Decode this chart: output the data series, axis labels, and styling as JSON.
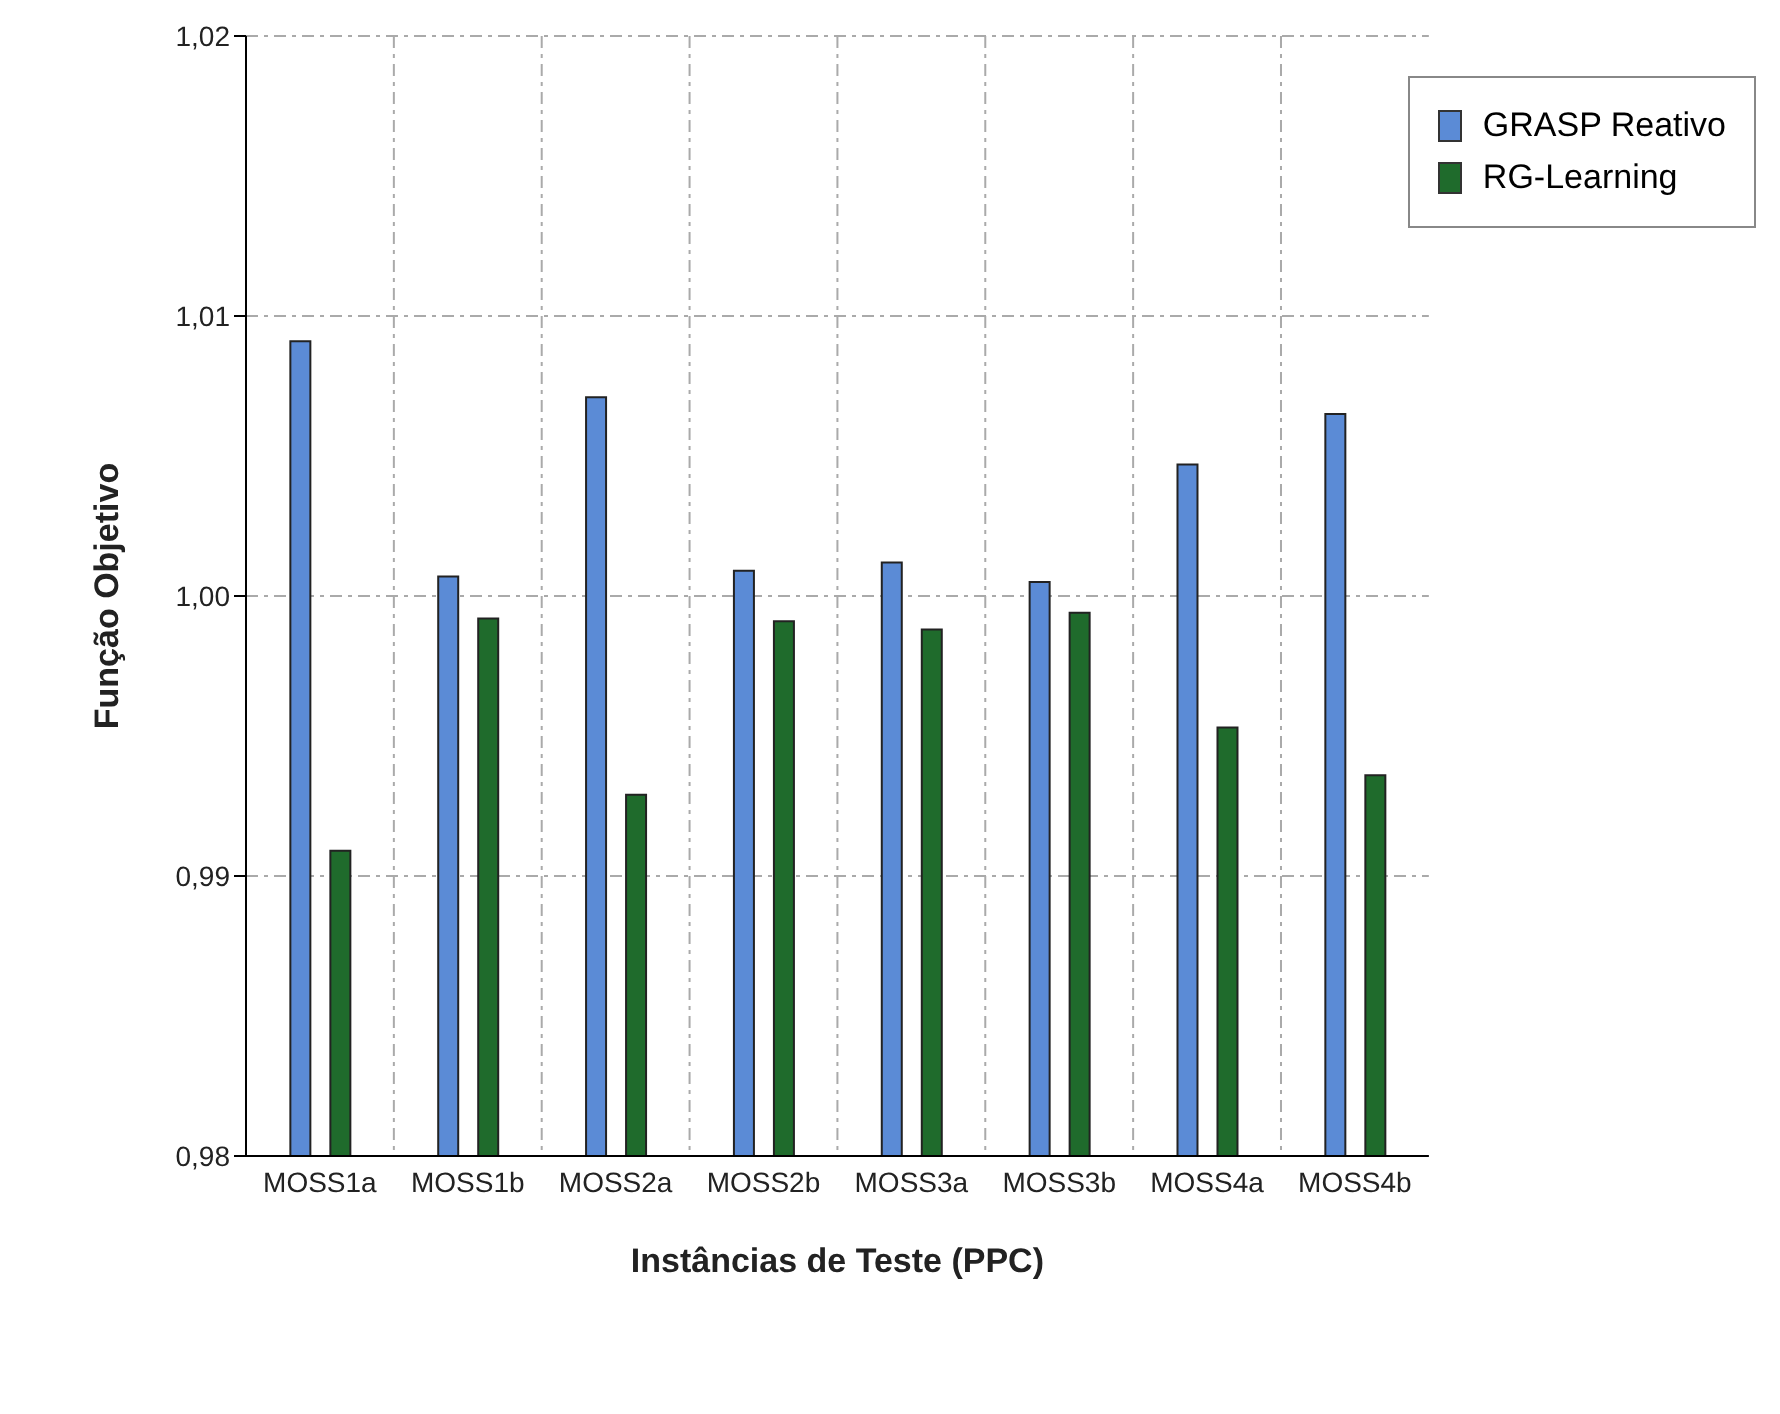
{
  "chart_data": {
    "type": "bar",
    "xlabel": "Instâncias de Teste (PPC)",
    "ylabel": "Função Objetivo",
    "categories": [
      "MOSS1a",
      "MOSS1b",
      "MOSS2a",
      "MOSS2b",
      "MOSS3a",
      "MOSS3b",
      "MOSS4a",
      "MOSS4b"
    ],
    "series": [
      {
        "name": "GRASP Reativo",
        "color": "#5b8bd6",
        "values": [
          1.0091,
          1.0007,
          1.0071,
          1.0009,
          1.0012,
          1.0005,
          1.0047,
          1.0065
        ]
      },
      {
        "name": "RG-Learning",
        "color": "#1f6b2c",
        "values": [
          0.9909,
          0.9992,
          0.9929,
          0.9991,
          0.9988,
          0.9994,
          0.9953,
          0.9936
        ]
      }
    ],
    "ylim": [
      0.98,
      1.02
    ],
    "yticks": [
      {
        "value": 0.98,
        "label": "0,98"
      },
      {
        "value": 0.99,
        "label": "0,99"
      },
      {
        "value": 1.0,
        "label": "1,00"
      },
      {
        "value": 1.01,
        "label": "1,01"
      },
      {
        "value": 1.02,
        "label": "1,02"
      }
    ],
    "grid": true,
    "legend": "top right"
  }
}
